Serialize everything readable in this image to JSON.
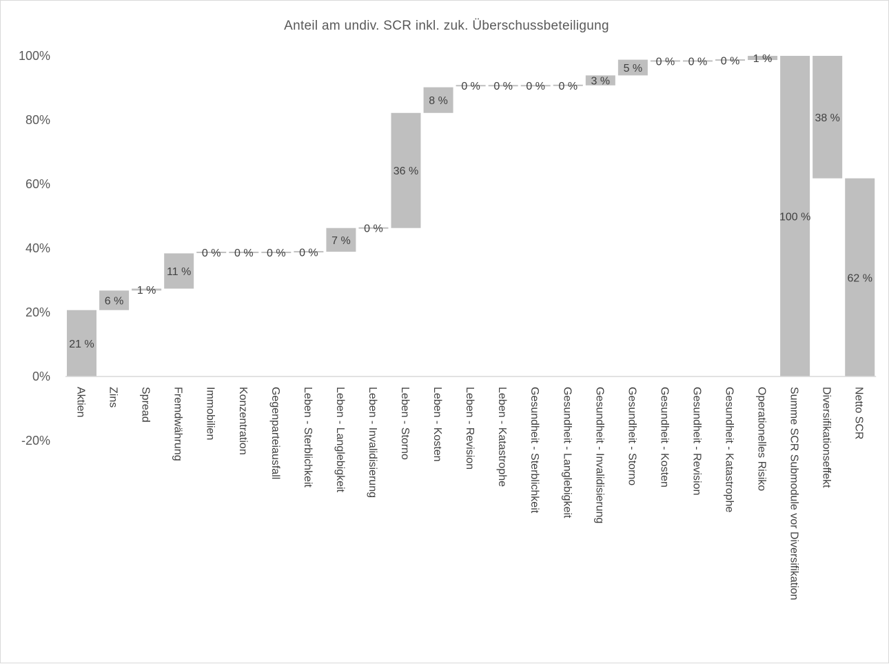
{
  "chart_data": {
    "type": "bar",
    "subtype": "waterfall",
    "title": "Anteil am undiv. SCR inkl. zuk. Überschussbeteiligung",
    "xlabel": "",
    "ylabel": "",
    "ylim": [
      -20,
      100
    ],
    "yticks": [
      "100%",
      "80%",
      "60%",
      "40%",
      "20%",
      "0%",
      "-20%"
    ],
    "grid": false,
    "legend": "none",
    "bar_color": "#bfbfbf",
    "categories": [
      "Aktien",
      "Zins",
      "Spread",
      "Fremdwährung",
      "Immobilien",
      "Konzentration",
      "Gegenparteiausfall",
      "Leben - Sterblichkeit",
      "Leben - Langlebigkeit",
      "Leben - Invalidisierung",
      "Leben - Storno",
      "Leben - Kosten",
      "Leben - Revision",
      "Leben - Katastrophe",
      "Gesundheit - Sterblichkeit",
      "Gesundheit - Langlebigkeit",
      "Gesundheit - Invalidisierung",
      "Gesundheit - Storno",
      "Gesundheit - Kosten",
      "Gesundheit - Revision",
      "Gesundheit - Katastrophe",
      "Operationelles Risiko",
      "Summe SCR Submodule vor Diversifikation",
      "Diversifikationseffekt",
      "Netto SCR"
    ],
    "values": [
      21,
      6,
      1,
      11,
      0,
      0,
      0,
      0,
      7,
      0,
      36,
      8,
      0,
      0,
      0,
      0,
      3,
      5,
      0,
      0,
      0,
      1,
      100,
      -38,
      62
    ],
    "bar_start": [
      0,
      20.7,
      26.8,
      27.4,
      38.7,
      38.7,
      38.7,
      38.7,
      38.9,
      46.3,
      46.3,
      82.2,
      90.7,
      90.7,
      90.7,
      90.7,
      90.8,
      93.9,
      98.4,
      98.4,
      98.4,
      98.7,
      0,
      100,
      0
    ],
    "bar_end": [
      20.7,
      26.8,
      27.4,
      38.4,
      38.7,
      38.7,
      38.7,
      38.9,
      46.3,
      46.3,
      82.2,
      90.2,
      90.7,
      90.7,
      90.7,
      90.8,
      93.9,
      98.8,
      98.4,
      98.4,
      98.7,
      100,
      100,
      61.8,
      61.8
    ],
    "data_labels": [
      "21 %",
      "6 %",
      "1 %",
      "11 %",
      "0 %",
      "0 %",
      "0 %",
      "0 %",
      "7 %",
      "0 %",
      "36 %",
      "8 %",
      "0 %",
      "0 %",
      "0 %",
      "0 %",
      "3 %",
      "5 %",
      "0 %",
      "0 %",
      "0 %",
      "1 %",
      "100 %",
      "38 %",
      "62 %"
    ]
  }
}
